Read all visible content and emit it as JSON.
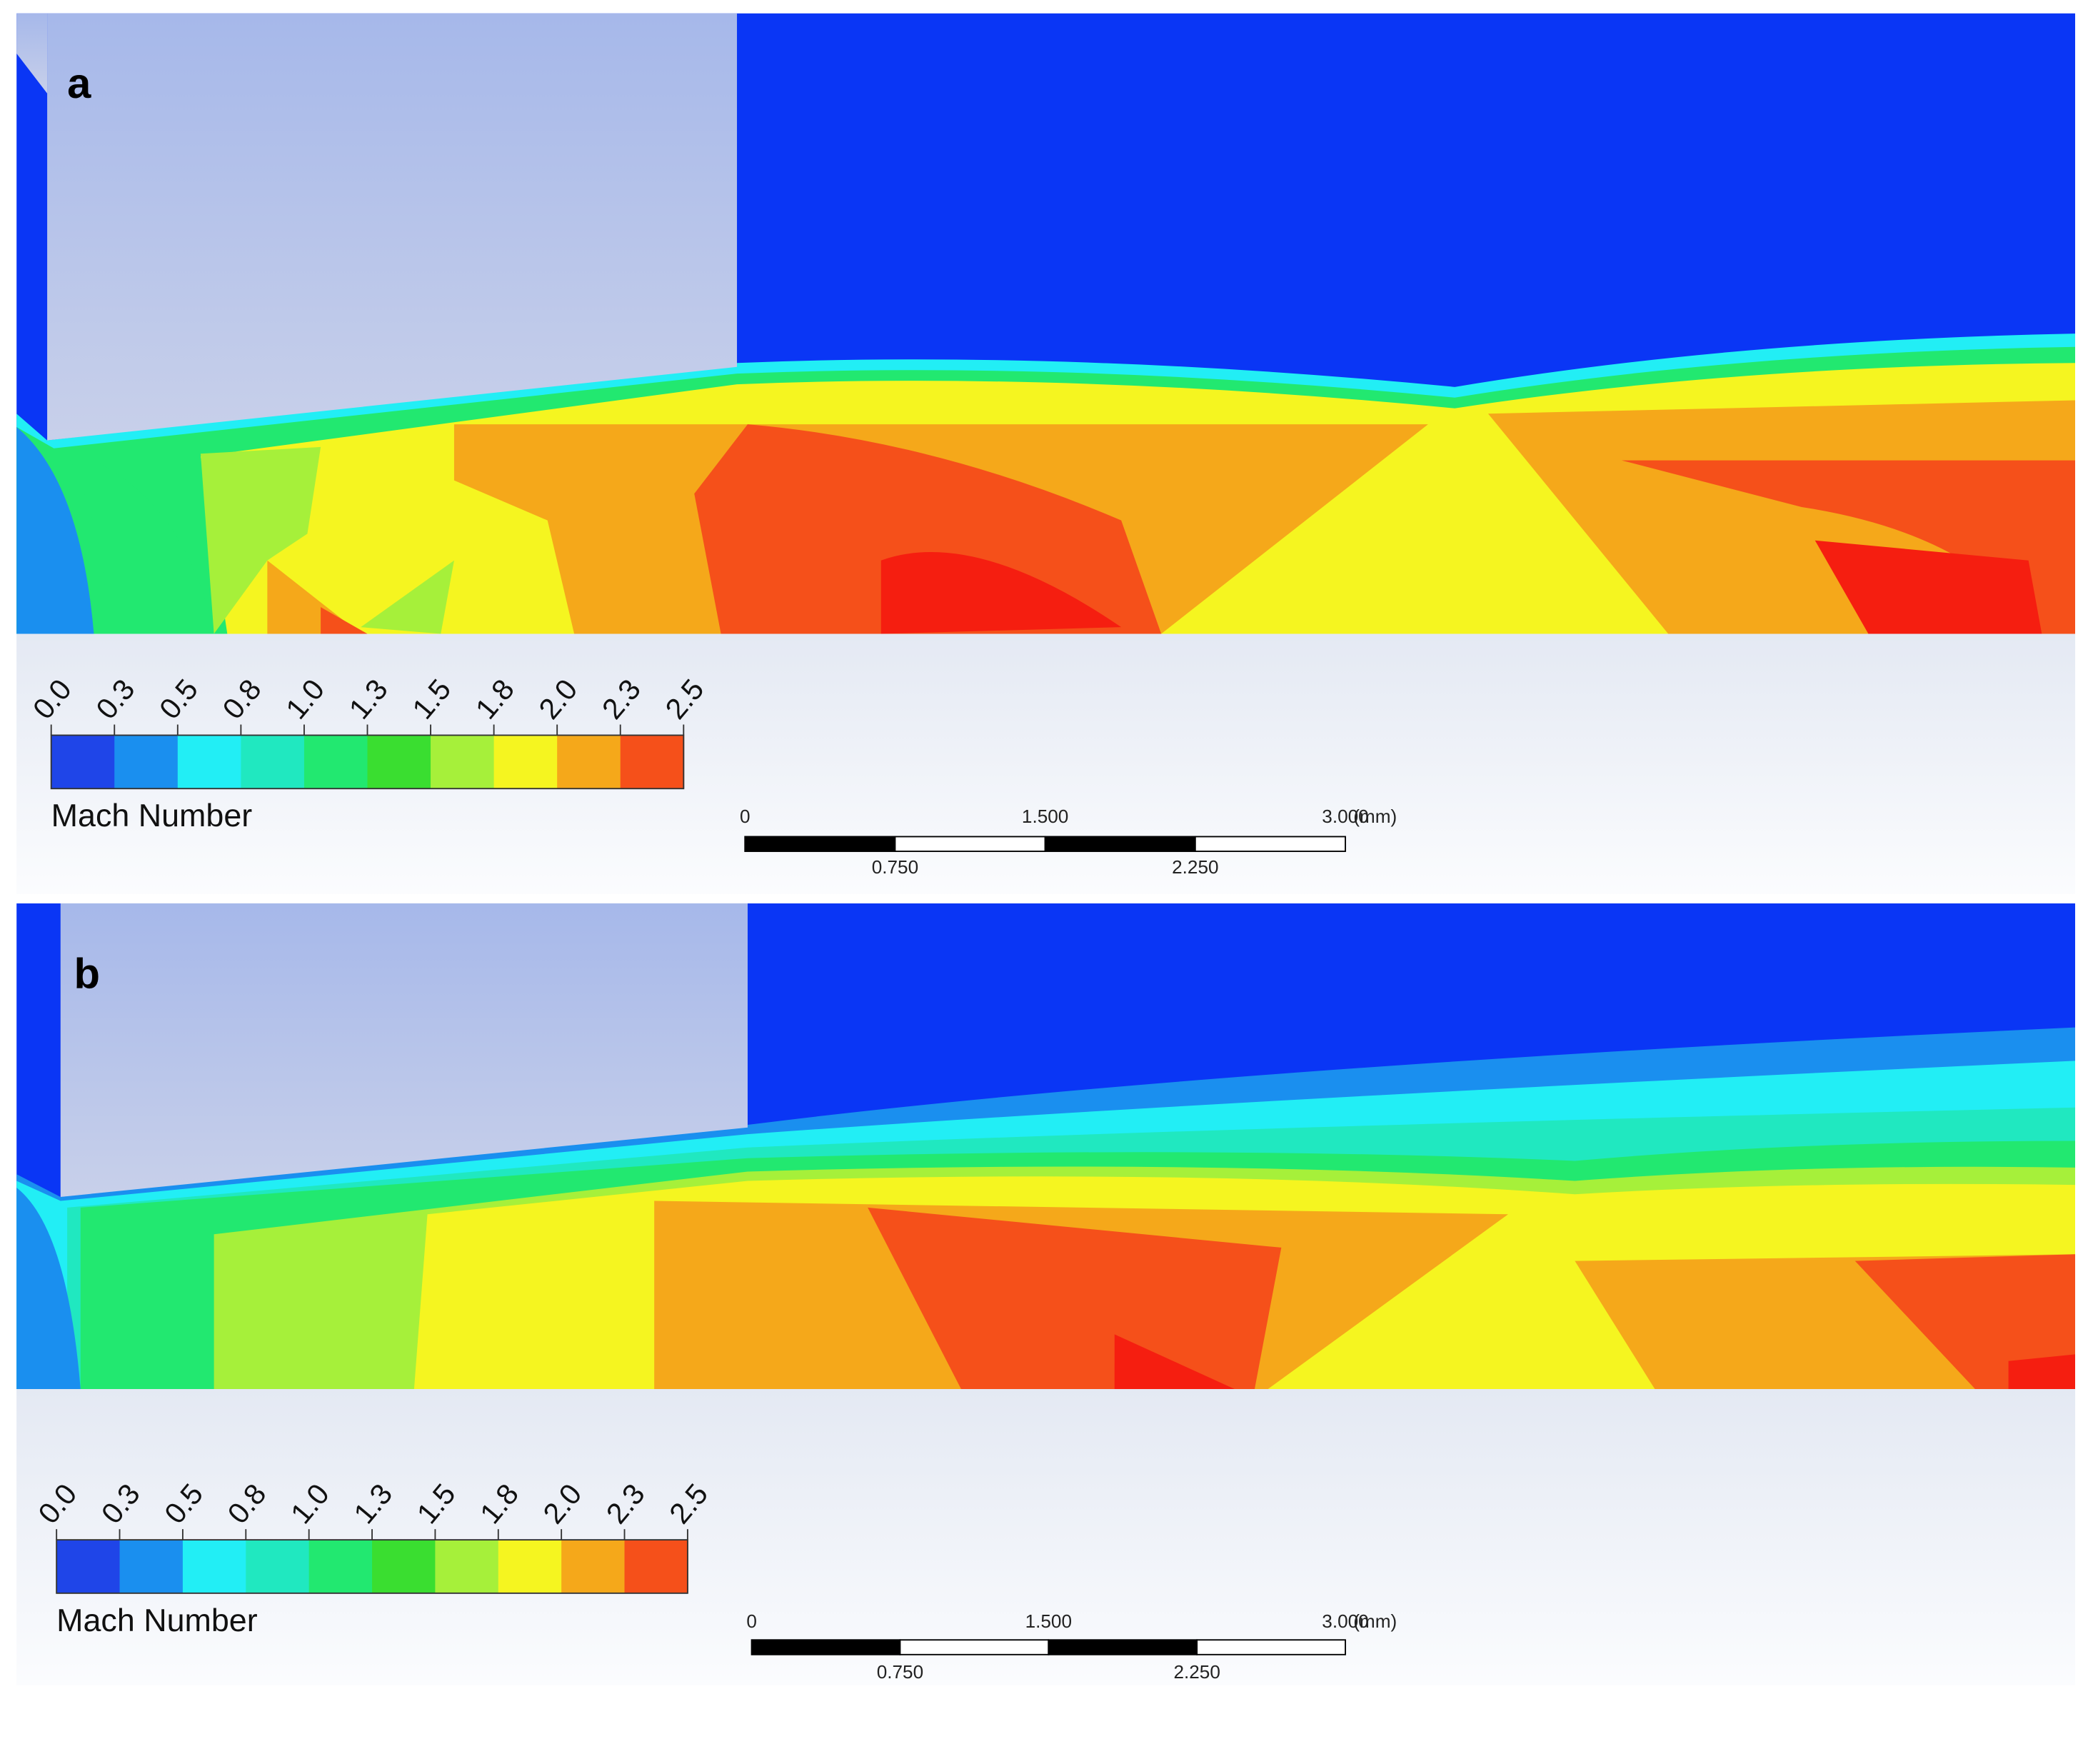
{
  "panels": [
    {
      "label": "a",
      "colorbar": {
        "title": "Mach Number",
        "ticks": [
          "0.0",
          "0.3",
          "0.5",
          "0.8",
          "1.0",
          "1.3",
          "1.5",
          "1.8",
          "2.0",
          "2.3",
          "2.5"
        ],
        "colors": [
          "#1f45e8",
          "#1a8fef",
          "#22eef5",
          "#20e8c0",
          "#22e870",
          "#3ade30",
          "#a6f03a",
          "#f5f520",
          "#f5a81a",
          "#f5501a"
        ]
      },
      "scale_bar": {
        "top_labels": [
          "0",
          "1.500",
          "3.000"
        ],
        "unit": "(mm)",
        "bottom_labels": [
          "0.750",
          "2.250"
        ]
      }
    },
    {
      "label": "b",
      "colorbar": {
        "title": "Mach Number",
        "ticks": [
          "0.0",
          "0.3",
          "0.5",
          "0.8",
          "1.0",
          "1.3",
          "1.5",
          "1.8",
          "2.0",
          "2.3",
          "2.5"
        ],
        "colors": [
          "#1f45e8",
          "#1a8fef",
          "#22eef5",
          "#20e8c0",
          "#22e870",
          "#3ade30",
          "#a6f03a",
          "#f5f520",
          "#f5a81a",
          "#f5501a"
        ]
      },
      "scale_bar": {
        "top_labels": [
          "0",
          "1.500",
          "3.000"
        ],
        "unit": "(mm)",
        "bottom_labels": [
          "0.750",
          "2.250"
        ]
      }
    }
  ]
}
